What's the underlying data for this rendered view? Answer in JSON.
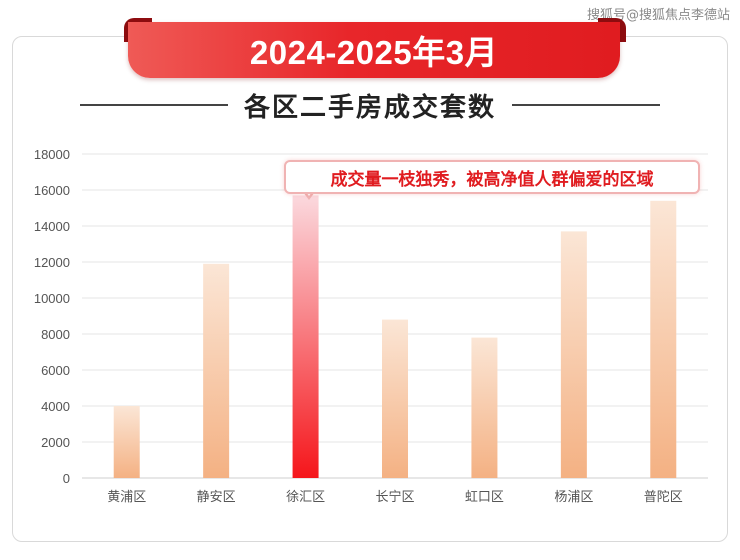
{
  "watermark": "搜狐号@搜狐焦点李德站",
  "banner": {
    "text": "2024-2025年3月"
  },
  "title": "各区二手房成交套数",
  "callout": "成交量一枝独秀，被高净值人群偏爱的区域",
  "colors": {
    "banner": "#e8262a",
    "highlight_top": "#fbd9de",
    "highlight_bottom": "#f5161b",
    "normal_top": "#fbe6d6",
    "normal_bottom": "#f4b183",
    "grid": "#e6e6e6",
    "axis_text": "#555555"
  },
  "chart_data": {
    "type": "bar",
    "title": "各区二手房成交套数",
    "categories": [
      "黄浦区",
      "静安区",
      "徐汇区",
      "长宁区",
      "虹口区",
      "杨浦区",
      "普陀区"
    ],
    "values": [
      4000,
      11900,
      15700,
      8800,
      7800,
      13700,
      15400
    ],
    "highlight": "徐汇区",
    "ylim": [
      0,
      18000
    ],
    "yticks": [
      0,
      2000,
      4000,
      6000,
      8000,
      10000,
      12000,
      14000,
      16000,
      18000
    ],
    "grid": true,
    "legend": "none"
  }
}
